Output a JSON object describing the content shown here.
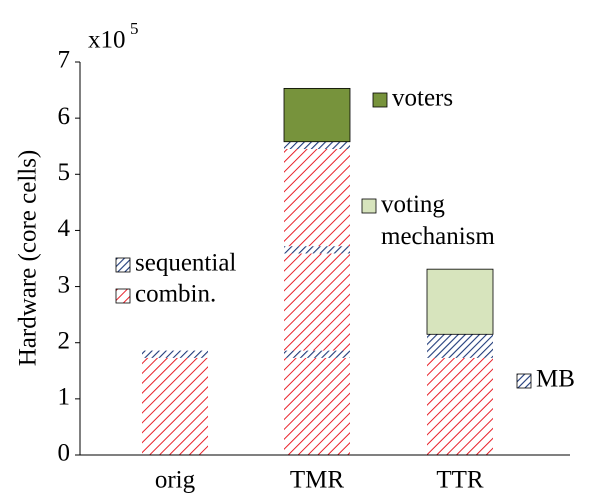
{
  "chart_data": {
    "type": "stacked_bar",
    "y_label": "Hardware (core cells)",
    "multiplier": "x10",
    "exponent": "5",
    "categories": [
      "orig",
      "TMR",
      "TTR"
    ],
    "ylim": [
      0,
      7
    ],
    "yticks": [
      0,
      1,
      2,
      3,
      4,
      5,
      6,
      7
    ],
    "series": [
      {
        "name": "combin.",
        "color": "#e8212a",
        "pattern": "hatch",
        "values": [
          1.73,
          1.73,
          1.73
        ]
      },
      {
        "name": "sequential",
        "color": "#1f3b7a",
        "pattern": "hatch",
        "values": [
          0.13,
          0.13,
          null
        ]
      },
      {
        "name": "combin.",
        "color": "#e8212a",
        "pattern": "hatch",
        "values": [
          null,
          1.73,
          null
        ]
      },
      {
        "name": "sequential",
        "color": "#1f3b7a",
        "pattern": "hatch",
        "values": [
          null,
          0.13,
          null
        ]
      },
      {
        "name": "combin.",
        "color": "#e8212a",
        "pattern": "hatch",
        "values": [
          null,
          1.73,
          null
        ]
      },
      {
        "name": "sequential",
        "color": "#1f3b7a",
        "pattern": "hatch",
        "values": [
          null,
          0.13,
          null
        ]
      },
      {
        "name": "MB",
        "color": "#1f3b7a",
        "pattern": "hatch",
        "values": [
          null,
          null,
          0.42
        ]
      },
      {
        "name": "voters",
        "color": "#77933c",
        "pattern": "solid",
        "values": [
          null,
          0.95,
          null
        ]
      },
      {
        "name": "voting mechanism",
        "color": "#d7e4bd",
        "pattern": "solid",
        "values": [
          null,
          null,
          1.16
        ]
      }
    ]
  }
}
